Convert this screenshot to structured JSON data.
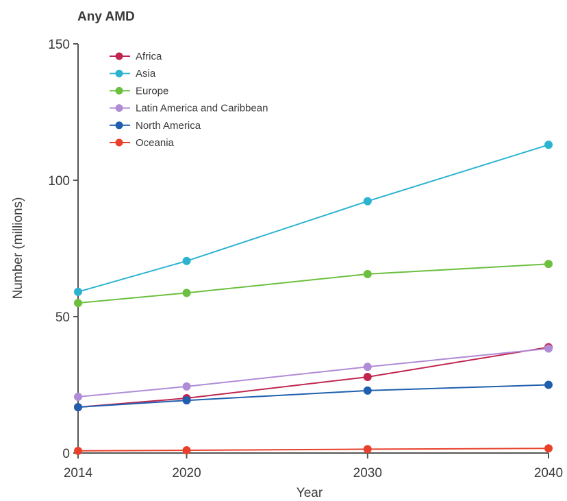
{
  "chart_data": {
    "type": "line",
    "title": "Any AMD",
    "xlabel": "Year",
    "ylabel": "Number (millions)",
    "x": [
      2014,
      2020,
      2030,
      2040
    ],
    "xlim": [
      2014,
      2040
    ],
    "ylim": [
      0,
      150
    ],
    "xticks": [
      "2014",
      "2020",
      "2030",
      "2040"
    ],
    "yticks": [
      "0",
      "50",
      "100",
      "150"
    ],
    "grid": false,
    "legend_position": "top-left",
    "series": [
      {
        "name": "Africa",
        "color": "#c0254f",
        "values": [
          16.8,
          20.1,
          27.9,
          38.8
        ]
      },
      {
        "name": "Asia",
        "color": "#2bb3d0",
        "values": [
          59.1,
          70.4,
          92.3,
          113.0
        ]
      },
      {
        "name": "Europe",
        "color": "#6cbf3f",
        "values": [
          55.0,
          58.7,
          65.6,
          69.3
        ]
      },
      {
        "name": "Latin America and Caribbean",
        "color": "#b08bd6",
        "values": [
          20.6,
          24.4,
          31.6,
          38.3
        ]
      },
      {
        "name": "North America",
        "color": "#1f5fae",
        "values": [
          16.8,
          19.3,
          22.9,
          25.0
        ]
      },
      {
        "name": "Oceania",
        "color": "#e8402b",
        "values": [
          0.8,
          1.0,
          1.4,
          1.7
        ]
      }
    ]
  }
}
